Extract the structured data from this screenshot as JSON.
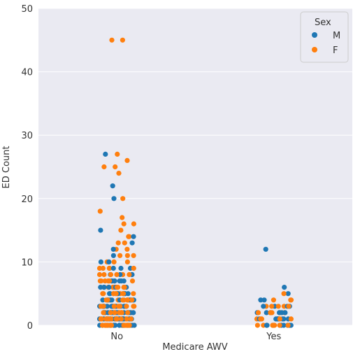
{
  "chart_data": {
    "type": "scatter",
    "subtype": "strip",
    "xlabel": "Medicare AWV",
    "ylabel": "ED Count",
    "categories": [
      "No",
      "Yes"
    ],
    "ylim": [
      0,
      50
    ],
    "yticks": [
      0,
      10,
      20,
      30,
      40,
      50
    ],
    "grid": true,
    "plot_background": "#eaeaf2",
    "legend": {
      "title": "Sex",
      "position": "top-right",
      "entries": [
        {
          "label": "M",
          "color": "#1f77b4"
        },
        {
          "label": "F",
          "color": "#ff7f0e"
        }
      ]
    },
    "series": [
      {
        "name": "M",
        "color": "#1f77b4",
        "points": [
          {
            "category": "No",
            "values": [
              0,
              0,
              0,
              0,
              0,
              0,
              0,
              0,
              0,
              0,
              0,
              0,
              0,
              0,
              0,
              0,
              0,
              0,
              0,
              0,
              0,
              0,
              0,
              0,
              1,
              1,
              1,
              1,
              1,
              1,
              1,
              1,
              1,
              1,
              1,
              1,
              1,
              1,
              1,
              1,
              1,
              1,
              1,
              1,
              2,
              2,
              2,
              2,
              2,
              2,
              2,
              2,
              2,
              2,
              2,
              2,
              2,
              2,
              2,
              2,
              3,
              3,
              3,
              3,
              3,
              3,
              3,
              3,
              3,
              3,
              3,
              3,
              3,
              3,
              4,
              4,
              4,
              4,
              4,
              4,
              4,
              4,
              4,
              4,
              4,
              5,
              5,
              5,
              5,
              5,
              5,
              5,
              5,
              5,
              6,
              6,
              6,
              6,
              6,
              6,
              6,
              7,
              7,
              7,
              7,
              7,
              7,
              7,
              8,
              8,
              8,
              8,
              9,
              9,
              9,
              10,
              10,
              11,
              12,
              13,
              14,
              15,
              20,
              22,
              27
            ]
          },
          {
            "category": "Yes",
            "values": [
              0,
              0,
              0,
              0,
              0,
              0,
              0,
              0,
              0,
              0,
              1,
              1,
              1,
              1,
              1,
              1,
              1,
              2,
              2,
              2,
              2,
              2,
              3,
              3,
              3,
              3,
              4,
              4,
              5,
              6,
              12
            ]
          }
        ]
      },
      {
        "name": "F",
        "color": "#ff7f0e",
        "points": [
          {
            "category": "No",
            "values": [
              0,
              0,
              0,
              0,
              0,
              0,
              0,
              0,
              0,
              0,
              0,
              0,
              0,
              0,
              0,
              0,
              0,
              0,
              0,
              0,
              0,
              0,
              0,
              0,
              0,
              0,
              0,
              0,
              1,
              1,
              1,
              1,
              1,
              1,
              1,
              1,
              1,
              1,
              1,
              1,
              1,
              1,
              1,
              1,
              1,
              1,
              1,
              1,
              1,
              1,
              2,
              2,
              2,
              2,
              2,
              2,
              2,
              2,
              2,
              2,
              2,
              2,
              2,
              2,
              2,
              2,
              2,
              3,
              3,
              3,
              3,
              3,
              3,
              3,
              3,
              3,
              3,
              3,
              3,
              3,
              3,
              4,
              4,
              4,
              4,
              4,
              4,
              4,
              4,
              4,
              4,
              4,
              4,
              5,
              5,
              5,
              5,
              5,
              5,
              5,
              5,
              5,
              5,
              5,
              6,
              6,
              6,
              6,
              6,
              6,
              6,
              6,
              6,
              7,
              7,
              7,
              7,
              7,
              7,
              7,
              7,
              8,
              8,
              8,
              8,
              8,
              8,
              9,
              9,
              9,
              9,
              9,
              10,
              10,
              10,
              11,
              11,
              11,
              12,
              12,
              13,
              13,
              14,
              14,
              15,
              16,
              16,
              17,
              18,
              20,
              24,
              25,
              25,
              26,
              27,
              45,
              45
            ]
          },
          {
            "category": "Yes",
            "values": [
              0,
              0,
              0,
              0,
              0,
              0,
              0,
              0,
              0,
              0,
              0,
              1,
              1,
              1,
              1,
              1,
              1,
              1,
              1,
              2,
              2,
              2,
              2,
              2,
              2,
              3,
              3,
              3,
              3,
              3,
              4,
              4,
              4,
              5
            ]
          }
        ]
      }
    ]
  }
}
